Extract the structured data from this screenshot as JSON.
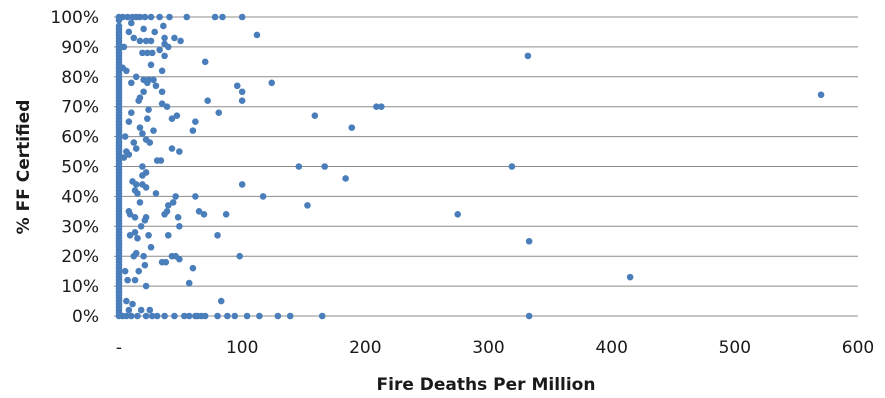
{
  "chart_data": {
    "type": "scatter",
    "title": "",
    "xlabel": "Fire Deaths Per Million",
    "ylabel": "% FF Certified",
    "xlim": [
      0,
      600
    ],
    "ylim": [
      0,
      1
    ],
    "x_tick_labels": [
      "-",
      "100",
      "200",
      "300",
      "400",
      "500",
      "600"
    ],
    "y_tick_labels": [
      "0%",
      "10%",
      "20%",
      "30%",
      "40%",
      "50%",
      "60%",
      "70%",
      "80%",
      "90%",
      "100%"
    ],
    "grid": "horizontal",
    "marker_color": "#4a7ebb",
    "series": [
      {
        "points": [
          [
            0,
            1.0
          ],
          [
            0,
            0.99
          ],
          [
            0,
            0.97
          ],
          [
            0,
            0.96
          ],
          [
            0,
            0.95
          ],
          [
            0,
            0.94
          ],
          [
            0,
            0.93
          ],
          [
            0,
            0.92
          ],
          [
            0,
            0.91
          ],
          [
            0,
            0.9
          ],
          [
            0,
            0.89
          ],
          [
            0,
            0.88
          ],
          [
            0,
            0.87
          ],
          [
            0,
            0.86
          ],
          [
            0,
            0.85
          ],
          [
            0,
            0.84
          ],
          [
            0,
            0.83
          ],
          [
            0,
            0.82
          ],
          [
            0,
            0.81
          ],
          [
            0,
            0.8
          ],
          [
            0,
            0.79
          ],
          [
            0,
            0.78
          ],
          [
            0,
            0.77
          ],
          [
            0,
            0.76
          ],
          [
            0,
            0.75
          ],
          [
            0,
            0.74
          ],
          [
            0,
            0.73
          ],
          [
            0,
            0.72
          ],
          [
            0,
            0.71
          ],
          [
            0,
            0.7
          ],
          [
            0,
            0.69
          ],
          [
            0,
            0.68
          ],
          [
            0,
            0.67
          ],
          [
            0,
            0.66
          ],
          [
            0,
            0.65
          ],
          [
            0,
            0.64
          ],
          [
            0,
            0.63
          ],
          [
            0,
            0.62
          ],
          [
            0,
            0.61
          ],
          [
            0,
            0.6
          ],
          [
            0,
            0.59
          ],
          [
            0,
            0.58
          ],
          [
            0,
            0.57
          ],
          [
            0,
            0.56
          ],
          [
            0,
            0.55
          ],
          [
            0,
            0.54
          ],
          [
            0,
            0.53
          ],
          [
            0,
            0.52
          ],
          [
            0,
            0.51
          ],
          [
            0,
            0.5
          ],
          [
            0,
            0.49
          ],
          [
            0,
            0.48
          ],
          [
            0,
            0.47
          ],
          [
            0,
            0.46
          ],
          [
            0,
            0.45
          ],
          [
            0,
            0.44
          ],
          [
            0,
            0.43
          ],
          [
            0,
            0.42
          ],
          [
            0,
            0.41
          ],
          [
            0,
            0.4
          ],
          [
            0,
            0.39
          ],
          [
            0,
            0.38
          ],
          [
            0,
            0.37
          ],
          [
            0,
            0.36
          ],
          [
            0,
            0.35
          ],
          [
            0,
            0.34
          ],
          [
            0,
            0.33
          ],
          [
            0,
            0.32
          ],
          [
            0,
            0.31
          ],
          [
            0,
            0.3
          ],
          [
            0,
            0.29
          ],
          [
            0,
            0.28
          ],
          [
            0,
            0.27
          ],
          [
            0,
            0.26
          ],
          [
            0,
            0.25
          ],
          [
            0,
            0.24
          ],
          [
            0,
            0.23
          ],
          [
            0,
            0.22
          ],
          [
            0,
            0.21
          ],
          [
            0,
            0.2
          ],
          [
            0,
            0.19
          ],
          [
            0,
            0.18
          ],
          [
            0,
            0.17
          ],
          [
            0,
            0.16
          ],
          [
            0,
            0.15
          ],
          [
            0,
            0.14
          ],
          [
            0,
            0.13
          ],
          [
            0,
            0.12
          ],
          [
            0,
            0.11
          ],
          [
            0,
            0.1
          ],
          [
            0,
            0.09
          ],
          [
            0,
            0.08
          ],
          [
            0,
            0.07
          ],
          [
            0,
            0.06
          ],
          [
            0,
            0.05
          ],
          [
            0,
            0.04
          ],
          [
            0,
            0.03
          ],
          [
            0,
            0.02
          ],
          [
            0,
            0.01
          ],
          [
            0,
            0.0
          ],
          [
            3,
            1.0
          ],
          [
            7,
            1.0
          ],
          [
            11,
            1.0
          ],
          [
            14,
            1.0
          ],
          [
            17,
            1.0
          ],
          [
            21,
            1.0
          ],
          [
            26,
            1.0
          ],
          [
            33,
            1.0
          ],
          [
            41,
            1.0
          ],
          [
            55,
            1.0
          ],
          [
            78,
            1.0
          ],
          [
            84,
            1.0
          ],
          [
            100,
            1.0
          ],
          [
            10,
            0.98
          ],
          [
            20,
            0.96
          ],
          [
            36,
            0.97
          ],
          [
            8,
            0.95
          ],
          [
            29,
            0.95
          ],
          [
            12,
            0.93
          ],
          [
            17,
            0.92
          ],
          [
            22,
            0.92
          ],
          [
            26,
            0.92
          ],
          [
            37,
            0.93
          ],
          [
            45,
            0.93
          ],
          [
            50,
            0.92
          ],
          [
            37,
            0.91
          ],
          [
            40,
            0.9
          ],
          [
            112,
            0.94
          ],
          [
            4,
            0.9
          ],
          [
            33,
            0.89
          ],
          [
            37,
            0.87
          ],
          [
            23,
            0.88
          ],
          [
            27,
            0.88
          ],
          [
            19,
            0.88
          ],
          [
            70,
            0.85
          ],
          [
            3,
            0.83
          ],
          [
            26,
            0.84
          ],
          [
            35,
            0.82
          ],
          [
            6,
            0.82
          ],
          [
            14,
            0.8
          ],
          [
            20,
            0.79
          ],
          [
            28,
            0.79
          ],
          [
            23,
            0.78
          ],
          [
            24,
            0.79
          ],
          [
            10,
            0.78
          ],
          [
            332,
            0.87
          ],
          [
            30,
            0.77
          ],
          [
            35,
            0.75
          ],
          [
            20,
            0.75
          ],
          [
            124,
            0.78
          ],
          [
            96,
            0.77
          ],
          [
            100,
            0.75
          ],
          [
            17,
            0.73
          ],
          [
            16,
            0.72
          ],
          [
            35,
            0.71
          ],
          [
            39,
            0.7
          ],
          [
            72,
            0.72
          ],
          [
            100,
            0.72
          ],
          [
            24,
            0.69
          ],
          [
            81,
            0.68
          ],
          [
            570,
            0.74
          ],
          [
            209,
            0.7
          ],
          [
            213,
            0.7
          ],
          [
            10,
            0.68
          ],
          [
            8,
            0.65
          ],
          [
            23,
            0.66
          ],
          [
            43,
            0.66
          ],
          [
            47,
            0.67
          ],
          [
            62,
            0.65
          ],
          [
            60,
            0.62
          ],
          [
            28,
            0.62
          ],
          [
            17,
            0.63
          ],
          [
            19,
            0.61
          ],
          [
            5,
            0.6
          ],
          [
            12,
            0.58
          ],
          [
            25,
            0.58
          ],
          [
            22,
            0.59
          ],
          [
            159,
            0.67
          ],
          [
            189,
            0.63
          ],
          [
            6,
            0.55
          ],
          [
            8,
            0.54
          ],
          [
            14,
            0.56
          ],
          [
            43,
            0.56
          ],
          [
            49,
            0.55
          ],
          [
            31,
            0.52
          ],
          [
            34,
            0.52
          ],
          [
            4,
            0.53
          ],
          [
            19,
            0.5
          ],
          [
            22,
            0.48
          ],
          [
            19,
            0.47
          ],
          [
            146,
            0.5
          ],
          [
            167,
            0.5
          ],
          [
            184,
            0.46
          ],
          [
            319,
            0.5
          ],
          [
            14,
            0.44
          ],
          [
            11,
            0.45
          ],
          [
            19,
            0.44
          ],
          [
            22,
            0.43
          ],
          [
            13,
            0.42
          ],
          [
            15,
            0.41
          ],
          [
            30,
            0.41
          ],
          [
            46,
            0.4
          ],
          [
            44,
            0.38
          ],
          [
            62,
            0.4
          ],
          [
            100,
            0.44
          ],
          [
            117,
            0.4
          ],
          [
            40,
            0.37
          ],
          [
            39,
            0.35
          ],
          [
            17,
            0.38
          ],
          [
            8,
            0.35
          ],
          [
            9,
            0.34
          ],
          [
            13,
            0.33
          ],
          [
            22,
            0.33
          ],
          [
            21,
            0.32
          ],
          [
            37,
            0.34
          ],
          [
            48,
            0.33
          ],
          [
            49,
            0.3
          ],
          [
            65,
            0.35
          ],
          [
            69,
            0.34
          ],
          [
            87,
            0.34
          ],
          [
            153,
            0.37
          ],
          [
            275,
            0.34
          ],
          [
            18,
            0.3
          ],
          [
            13,
            0.28
          ],
          [
            9,
            0.27
          ],
          [
            24,
            0.27
          ],
          [
            40,
            0.27
          ],
          [
            80,
            0.27
          ],
          [
            15,
            0.26
          ],
          [
            26,
            0.23
          ],
          [
            14,
            0.21
          ],
          [
            12,
            0.2
          ],
          [
            20,
            0.2
          ],
          [
            43,
            0.2
          ],
          [
            46,
            0.2
          ],
          [
            49,
            0.19
          ],
          [
            38,
            0.18
          ],
          [
            35,
            0.18
          ],
          [
            98,
            0.2
          ],
          [
            333,
            0.25
          ],
          [
            21,
            0.17
          ],
          [
            5,
            0.15
          ],
          [
            16,
            0.15
          ],
          [
            7,
            0.12
          ],
          [
            13,
            0.12
          ],
          [
            22,
            0.1
          ],
          [
            60,
            0.16
          ],
          [
            57,
            0.11
          ],
          [
            415,
            0.13
          ],
          [
            6,
            0.05
          ],
          [
            11,
            0.04
          ],
          [
            8,
            0.02
          ],
          [
            18,
            0.02
          ],
          [
            25,
            0.02
          ],
          [
            83,
            0.05
          ],
          [
            3,
            0.0
          ],
          [
            6,
            0.0
          ],
          [
            10,
            0.0
          ],
          [
            15,
            0.0
          ],
          [
            22,
            0.0
          ],
          [
            27,
            0.0
          ],
          [
            31,
            0.0
          ],
          [
            37,
            0.0
          ],
          [
            45,
            0.0
          ],
          [
            53,
            0.0
          ],
          [
            57,
            0.0
          ],
          [
            62,
            0.0
          ],
          [
            64,
            0.0
          ],
          [
            67,
            0.0
          ],
          [
            70,
            0.0
          ],
          [
            80,
            0.0
          ],
          [
            88,
            0.0
          ],
          [
            94,
            0.0
          ],
          [
            104,
            0.0
          ],
          [
            114,
            0.0
          ],
          [
            129,
            0.0
          ],
          [
            139,
            0.0
          ],
          [
            165,
            0.0
          ],
          [
            333,
            0.0
          ]
        ]
      }
    ]
  }
}
